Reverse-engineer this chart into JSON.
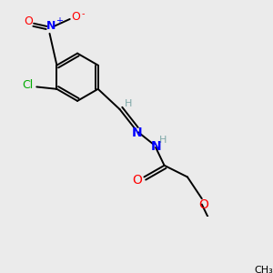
{
  "background_color": "#ebebeb",
  "bond_color": "#000000",
  "bond_width": 1.4,
  "atom_colors": {
    "C": "#000000",
    "H": "#7fa8a8",
    "N": "#0000ff",
    "O": "#ff0000",
    "Cl": "#00aa00",
    "NO2_N": "#0000ff",
    "NO2_O": "#ff0000"
  }
}
